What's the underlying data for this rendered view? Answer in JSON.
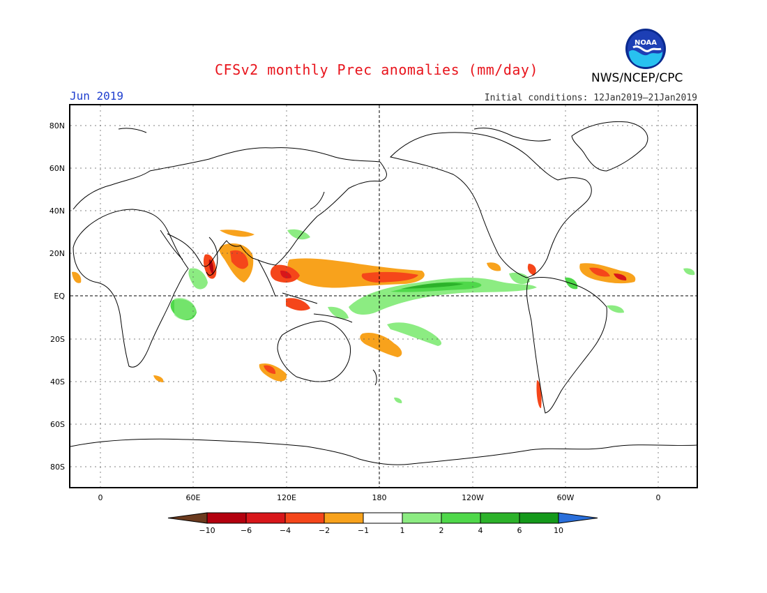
{
  "title": "CFSv2 monthly Prec anomalies (mm/day)",
  "valid_month": "Jun 2019",
  "initial_conditions": "Initial conditions: 12Jan2019–21Jan2019",
  "agency": "NWS/NCEP/CPC",
  "logo_text": "NOAA",
  "lat_labels": [
    "80N",
    "60N",
    "40N",
    "20N",
    "EQ",
    "20S",
    "40S",
    "60S",
    "80S"
  ],
  "lon_labels": [
    "0",
    "60E",
    "120E",
    "180",
    "120W",
    "60W",
    "0"
  ],
  "colorbar": {
    "tick_labels": [
      "−10",
      "−6",
      "−4",
      "−2",
      "−1",
      "1",
      "2",
      "4",
      "6",
      "10"
    ],
    "colors": [
      "#6b3a1e",
      "#b3000e",
      "#d8161a",
      "#f5461a",
      "#f8a21c",
      "#ffffff",
      "#8cec82",
      "#4fd84a",
      "#2cb22a",
      "#14991a",
      "#2a6fdb"
    ]
  }
}
